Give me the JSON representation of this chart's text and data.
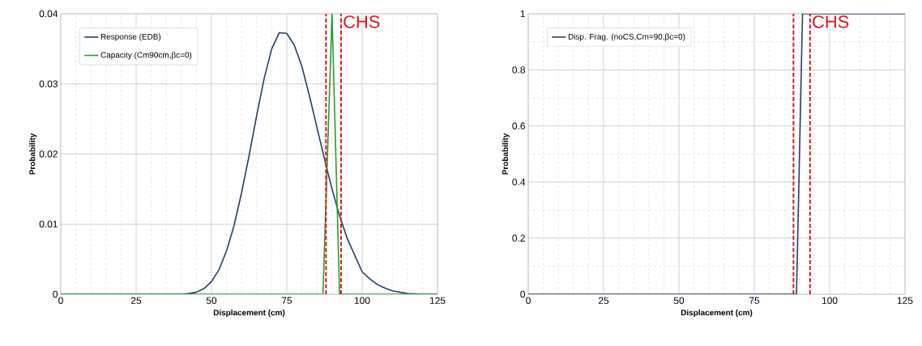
{
  "chart_data": [
    {
      "type": "line",
      "xlabel": "Displacement (cm)",
      "ylabel": "Probability",
      "xlim": [
        0,
        125
      ],
      "ylim": [
        0,
        0.04
      ],
      "xticks": [
        0,
        25,
        50,
        75,
        100,
        125
      ],
      "yticks": [
        0,
        0.01,
        0.02,
        0.03,
        0.04
      ],
      "grid": true,
      "legend": "top left",
      "series": [
        {
          "name": "Response (EDB)",
          "color": "#243f60",
          "x": [
            0,
            40,
            42.5,
            45,
            47.5,
            50,
            52.5,
            55,
            57.5,
            60,
            62.5,
            65,
            67.5,
            70,
            72.5,
            75,
            77.5,
            80,
            82.5,
            85,
            87.5,
            90,
            92.5,
            95,
            97.5,
            100,
            102.5,
            105,
            107.5,
            110,
            112.5,
            115,
            120,
            125
          ],
          "values": [
            0,
            0,
            0.0001,
            0.0003,
            0.0008,
            0.0018,
            0.0035,
            0.0062,
            0.0098,
            0.0145,
            0.0198,
            0.0255,
            0.0308,
            0.035,
            0.0373,
            0.0372,
            0.0355,
            0.0325,
            0.0283,
            0.0238,
            0.0193,
            0.015,
            0.0112,
            0.008,
            0.0056,
            0.0032,
            0.0022,
            0.0014,
            0.0009,
            0.0005,
            0.0003,
            0.0001,
            0,
            0
          ]
        },
        {
          "name": "Capacity (Cm90cm,βc=0)",
          "color": "#2a9a2a",
          "x": [
            0,
            87,
            90,
            92.5,
            125
          ],
          "values": [
            0,
            0,
            0.04,
            0,
            0
          ]
        }
      ],
      "ref_lines": [
        {
          "axis": "x",
          "value": 88,
          "color": "#e0141e",
          "line_style": "dashed"
        },
        {
          "axis": "x",
          "value": 93,
          "label": "CHS",
          "color": "#e0141e",
          "line_style": "dashed"
        }
      ]
    },
    {
      "type": "line",
      "xlabel": "Displacement (cm)",
      "ylabel": "Probability",
      "xlim": [
        0,
        125
      ],
      "ylim": [
        0,
        1
      ],
      "xticks": [
        0,
        25,
        50,
        75,
        100,
        125
      ],
      "yticks": [
        0,
        0.2,
        0.4,
        0.6,
        0.8,
        1
      ],
      "grid": true,
      "legend": "top left",
      "series": [
        {
          "name": "Disp. Frag. (noCS,Cm=90,βc=0)",
          "color": "#243f60",
          "x": [
            0,
            89,
            91,
            125
          ],
          "values": [
            0,
            0,
            1,
            1
          ]
        }
      ],
      "ref_lines": [
        {
          "axis": "x",
          "value": 88,
          "color": "#e0141e",
          "line_style": "dashed"
        },
        {
          "axis": "x",
          "value": 93.5,
          "label": "CHS",
          "color": "#e0141e",
          "line_style": "dashed"
        }
      ]
    }
  ]
}
